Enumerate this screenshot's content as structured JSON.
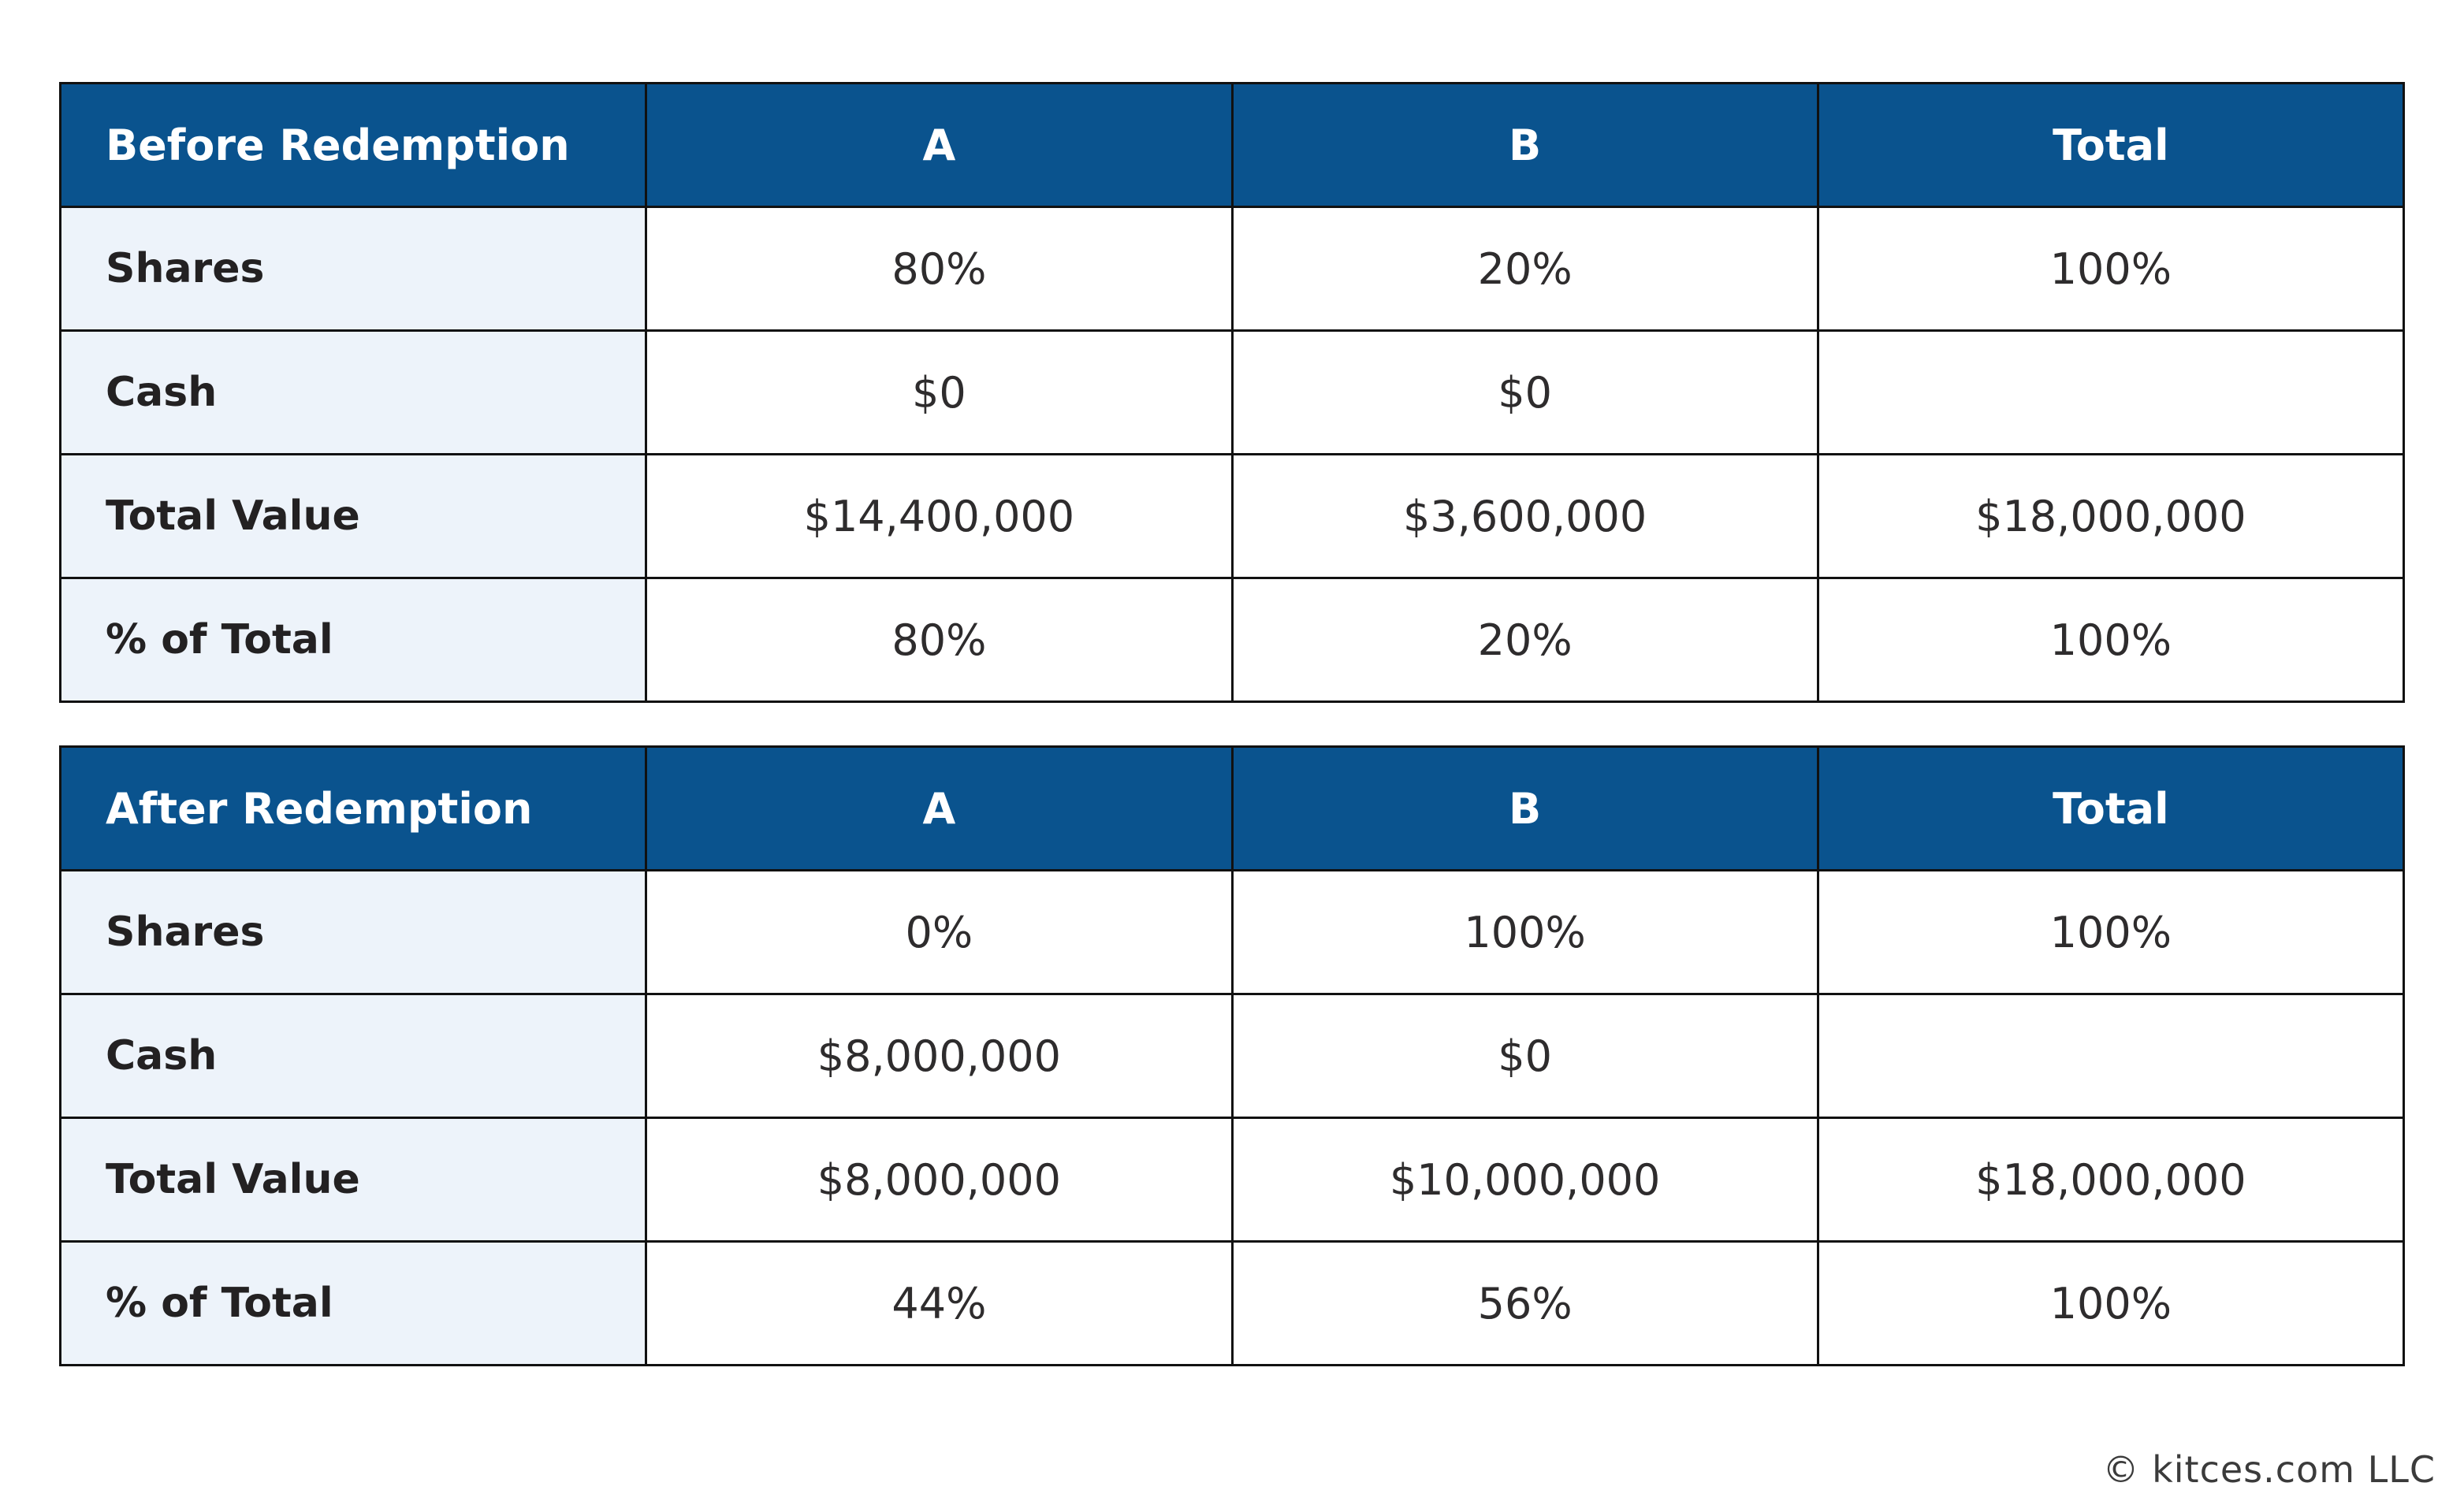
{
  "theme": {
    "header_blue": "#0a538e",
    "header_text": "#ffffff",
    "label_bg": "#edf3fa",
    "cell_bg": "#ffffff",
    "border": "#111111",
    "text_dark": "#2e2c2d"
  },
  "footer": {
    "copyright": "© kitces.com LLC"
  },
  "chart_data": [
    {
      "type": "table",
      "title": "Before Redemption",
      "columns": [
        "A",
        "B",
        "Total"
      ],
      "rows": [
        {
          "label": "Shares",
          "values": [
            "80%",
            "20%",
            "100%"
          ]
        },
        {
          "label": "Cash",
          "values": [
            "$0",
            "$0",
            ""
          ]
        },
        {
          "label": "Total Value",
          "values": [
            "$14,400,000",
            "$3,600,000",
            "$18,000,000"
          ]
        },
        {
          "label": "% of Total",
          "values": [
            "80%",
            "20%",
            "100%"
          ]
        }
      ]
    },
    {
      "type": "table",
      "title": "After Redemption",
      "columns": [
        "A",
        "B",
        "Total"
      ],
      "rows": [
        {
          "label": "Shares",
          "values": [
            "0%",
            "100%",
            "100%"
          ]
        },
        {
          "label": "Cash",
          "values": [
            "$8,000,000",
            "$0",
            ""
          ]
        },
        {
          "label": "Total Value",
          "values": [
            "$8,000,000",
            "$10,000,000",
            "$18,000,000"
          ]
        },
        {
          "label": "% of Total",
          "values": [
            "44%",
            "56%",
            "100%"
          ]
        }
      ]
    }
  ]
}
